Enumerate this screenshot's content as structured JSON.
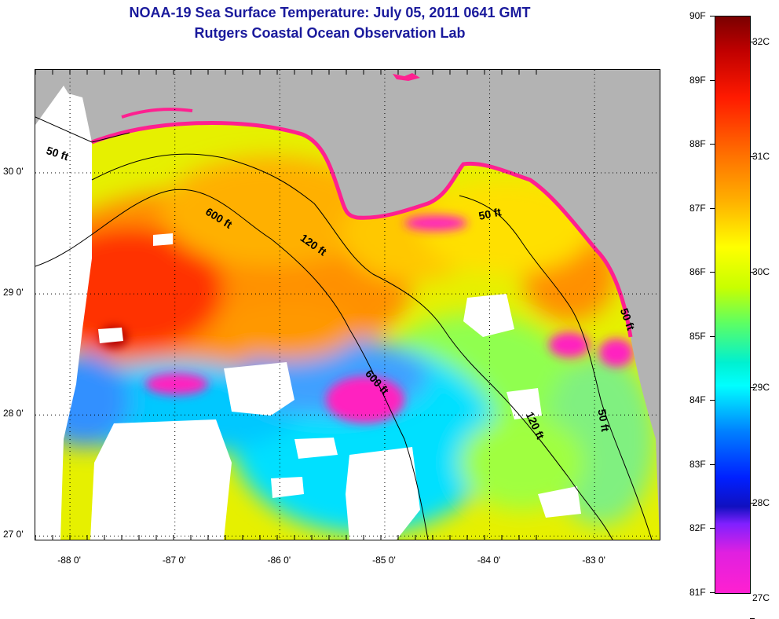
{
  "header": {
    "title": "NOAA-19 Sea Surface Temperature:  July 05, 2011 0641 GMT",
    "subtitle": "Rutgers Coastal Ocean Observation Lab"
  },
  "map": {
    "lon_range": [
      -88.33,
      -82.38
    ],
    "lat_range": [
      26.97,
      30.85
    ],
    "y_ticks": [
      {
        "value": 30,
        "label": "30 0'"
      },
      {
        "value": 29,
        "label": "29 0'"
      },
      {
        "value": 28,
        "label": "28 0'"
      },
      {
        "value": 27,
        "label": "27 0'"
      }
    ],
    "x_ticks": [
      {
        "value": -88,
        "label": "-88 0'"
      },
      {
        "value": -87,
        "label": "-87 0'"
      },
      {
        "value": -86,
        "label": "-86 0'"
      },
      {
        "value": -85,
        "label": "-85 0'"
      },
      {
        "value": -84,
        "label": "-84 0'"
      },
      {
        "value": -83,
        "label": "-83 0'"
      }
    ],
    "contour_labels": [
      {
        "text": "50 ft",
        "lon": -88.13,
        "lat": 30.13,
        "angle": 18
      },
      {
        "text": "600 ft",
        "lon": -86.6,
        "lat": 29.6,
        "angle": 32
      },
      {
        "text": "120 ft",
        "lon": -85.7,
        "lat": 29.38,
        "angle": 35
      },
      {
        "text": "50 ft",
        "lon": -83.99,
        "lat": 29.63,
        "angle": -12
      },
      {
        "text": "600 ft",
        "lon": -85.1,
        "lat": 28.25,
        "angle": 48
      },
      {
        "text": "120 ft",
        "lon": -83.6,
        "lat": 27.9,
        "angle": 65
      },
      {
        "text": "50 ft",
        "lon": -82.95,
        "lat": 27.95,
        "angle": 80
      },
      {
        "text": "50 ft",
        "lon": -82.72,
        "lat": 28.78,
        "angle": 70
      }
    ],
    "colors": {
      "land": "#b3b3b3",
      "cloud": "#ffffff",
      "coast_warm": "#ff20a0"
    }
  },
  "colorbar": {
    "f_labels": [
      {
        "label": "90F",
        "value": 90
      },
      {
        "label": "89F",
        "value": 89
      },
      {
        "label": "88F",
        "value": 88
      },
      {
        "label": "87F",
        "value": 87
      },
      {
        "label": "86F",
        "value": 86
      },
      {
        "label": "85F",
        "value": 85
      },
      {
        "label": "84F",
        "value": 84
      },
      {
        "label": "83F",
        "value": 83
      },
      {
        "label": "82F",
        "value": 82
      },
      {
        "label": "81F",
        "value": 81
      }
    ],
    "c_labels": [
      {
        "label": "32C",
        "value": 32
      },
      {
        "label": "31C",
        "value": 31
      },
      {
        "label": "30C",
        "value": 30
      },
      {
        "label": "29C",
        "value": 29
      },
      {
        "label": "28C",
        "value": 28
      },
      {
        "label": "27C",
        "value": 27
      }
    ],
    "range_f": [
      81,
      90
    ]
  }
}
